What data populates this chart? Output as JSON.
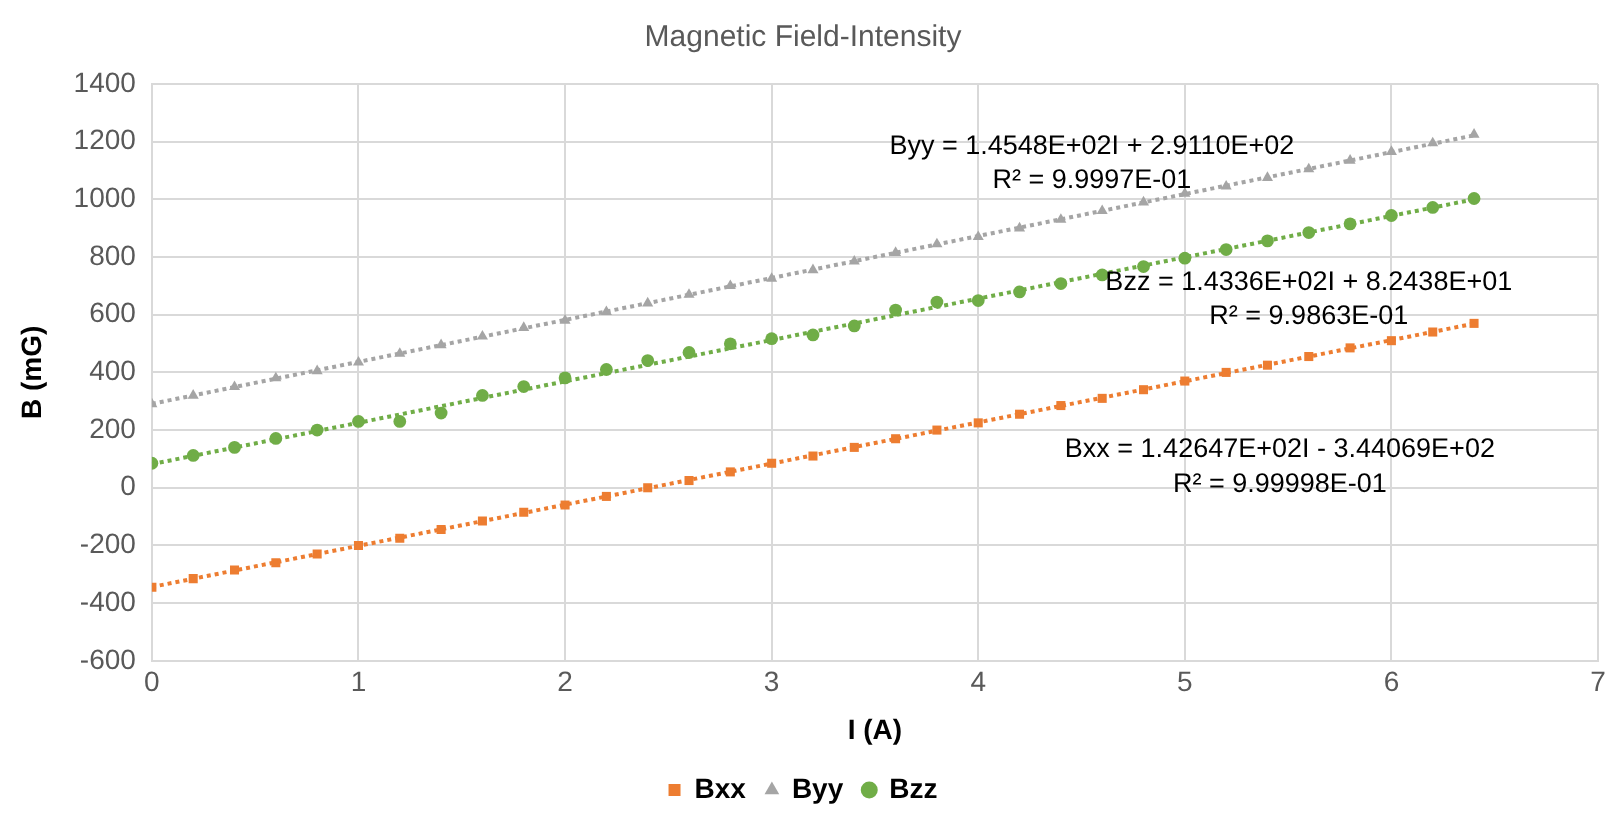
{
  "chart_data": {
    "type": "scatter",
    "title": "Magnetic Field-Intensity",
    "xlabel": "I (A)",
    "ylabel": "B (mG)",
    "x": [
      0,
      0.2,
      0.4,
      0.6,
      0.8,
      1,
      1.2,
      1.4,
      1.6,
      1.8,
      2,
      2.2,
      2.4,
      2.6,
      2.8,
      3,
      3.2,
      3.4,
      3.6,
      3.8,
      4,
      4.2,
      4.4,
      4.6,
      4.8,
      5,
      5.2,
      5.4,
      5.6,
      5.8,
      6,
      6.2,
      6.4
    ],
    "series": [
      {
        "name": "Bxx",
        "color": "#ed7d31",
        "marker": "square",
        "values": [
          -345,
          -315,
          -285,
          -260,
          -230,
          -200,
          -175,
          -145,
          -115,
          -85,
          -60,
          -30,
          0,
          25,
          55,
          85,
          110,
          140,
          170,
          200,
          225,
          255,
          285,
          310,
          340,
          370,
          400,
          425,
          455,
          485,
          510,
          540,
          570
        ]
      },
      {
        "name": "Byy",
        "color": "#a5a5a5",
        "marker": "triangle",
        "values": [
          290,
          320,
          350,
          380,
          405,
          435,
          465,
          495,
          525,
          555,
          580,
          610,
          640,
          670,
          700,
          725,
          755,
          785,
          815,
          845,
          870,
          900,
          930,
          960,
          990,
          1020,
          1045,
          1075,
          1105,
          1135,
          1165,
          1195,
          1225
        ]
      },
      {
        "name": "Bzz",
        "color": "#70ad47",
        "marker": "circle",
        "values": [
          85,
          112,
          140,
          171,
          200,
          230,
          230,
          259,
          320,
          351,
          381,
          410,
          441,
          469,
          499,
          517,
          530,
          561,
          616,
          644,
          649,
          679,
          708,
          738,
          767,
          796,
          826,
          856,
          885,
          915,
          944,
          972,
          1003
        ]
      },
      {
        "type": "line",
        "color": "#ed7d31",
        "line_style": "dotted",
        "marker": "none",
        "values": [
          -344,
          null,
          null,
          null,
          null,
          null,
          null,
          null,
          null,
          null,
          null,
          null,
          null,
          null,
          null,
          null,
          null,
          null,
          null,
          null,
          null,
          null,
          null,
          null,
          null,
          null,
          null,
          null,
          null,
          null,
          null,
          null,
          569
        ]
      },
      {
        "type": "line",
        "color": "#a5a5a5",
        "line_style": "dotted",
        "marker": "none",
        "values": [
          291,
          null,
          null,
          null,
          null,
          null,
          null,
          null,
          null,
          null,
          null,
          null,
          null,
          null,
          null,
          null,
          null,
          null,
          null,
          null,
          null,
          null,
          null,
          null,
          null,
          null,
          null,
          null,
          null,
          null,
          null,
          null,
          1222
        ]
      },
      {
        "type": "line",
        "color": "#70ad47",
        "line_style": "dotted",
        "marker": "none",
        "values": [
          82,
          null,
          null,
          null,
          null,
          null,
          null,
          null,
          null,
          null,
          null,
          null,
          null,
          null,
          null,
          null,
          null,
          null,
          null,
          null,
          null,
          null,
          null,
          null,
          null,
          null,
          null,
          null,
          null,
          null,
          null,
          null,
          1000
        ]
      }
    ],
    "xlim": [
      0,
      7
    ],
    "xticks": [
      0,
      1,
      2,
      3,
      4,
      5,
      6,
      7
    ],
    "ylim": [
      -600,
      1400
    ],
    "yticks": [
      -600,
      -400,
      -200,
      0,
      200,
      400,
      600,
      800,
      1000,
      1200,
      1400
    ],
    "grid": true,
    "legend": "bottom",
    "annotations": [
      "Byy = 1.4548E+02I + 2.9110E+02",
      "R² = 9.9997E-01",
      "Bzz = 1.4336E+02I + 8.2438E+01",
      "R² = 9.9863E-01",
      "Bxx = 1.42647E+02I - 3.44069E+02",
      "R² = 9.99998E-01"
    ]
  }
}
